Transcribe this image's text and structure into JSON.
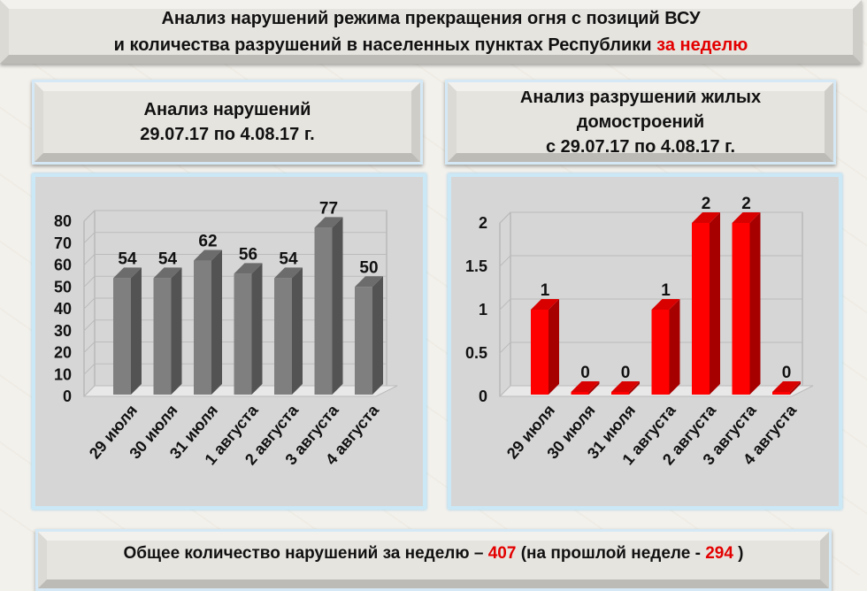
{
  "title": {
    "line1": "Анализ нарушений режима прекращения огня с позиций ВСУ",
    "line2": "и количества разрушений в населенных пунктах Республики",
    "line2_red": "за неделю"
  },
  "left_header": {
    "line1": "Анализ нарушений",
    "line2": "29.07.17 по 4.08.17 г."
  },
  "right_header": {
    "line1": "Анализ разрушений жилых",
    "line2": "домостроений",
    "line3": "с 29.07.17 по 4.08.17 г."
  },
  "chart_data": [
    {
      "type": "bar",
      "categories": [
        "29 июля",
        "30 июля",
        "31 июля",
        "1 августа",
        "2 августа",
        "3 августа",
        "4 августа"
      ],
      "values": [
        54,
        54,
        62,
        56,
        54,
        77,
        50
      ],
      "ylim": [
        0,
        80
      ],
      "yticks": [
        0,
        10,
        20,
        30,
        40,
        50,
        60,
        70,
        80
      ],
      "color": "#7f7f7f",
      "3d": true,
      "data_labels": true
    },
    {
      "type": "bar",
      "categories": [
        "29 июля",
        "30 июля",
        "31 июля",
        "1 августа",
        "2 августа",
        "3 августа",
        "4 августа"
      ],
      "values": [
        1,
        0,
        0,
        1,
        2,
        2,
        0
      ],
      "ylim": [
        0,
        2
      ],
      "yticks": [
        0,
        0.5,
        1,
        1.5,
        2
      ],
      "color": "#ff0000",
      "3d": true,
      "data_labels": true
    }
  ],
  "bottom": {
    "text1": "Общее количество нарушений за неделю – ",
    "value": "407",
    "text2": " (на прошлой неделе - ",
    "prev": "294",
    "text3": " )"
  },
  "colors": {
    "accent_red": "#e30000",
    "panel_border": "#cbe8f6"
  }
}
